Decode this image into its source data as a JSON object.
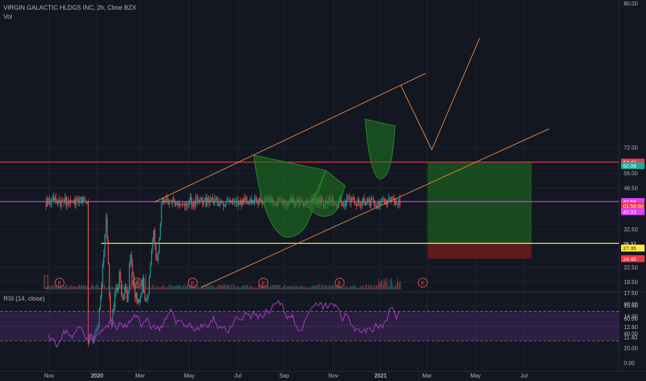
{
  "header": {
    "symbol_line": "VIRGIN GALACTIC HLDGS INC, 2h, Cboe BZX",
    "volume_label": "Vol"
  },
  "rsi_label": "RSI (14, close)",
  "chart_data": [
    {
      "type": "candlestick",
      "title": "VIRGIN GALACTIC HLDGS INC, 2h, Cboe BZX",
      "x_tick_labels": [
        "Nov",
        "2020",
        "Mar",
        "May",
        "Jul",
        "Sep",
        "Nov",
        "2021",
        "Mar",
        "May",
        "Jul"
      ],
      "y_tick_labels": [
        "80.00",
        "72.00",
        "56.00",
        "48.50",
        "32.50",
        "22.50",
        "19.50",
        "17.50",
        "15.50",
        "14.00",
        "12.60",
        "11.40"
      ],
      "y_scale": "log",
      "price_path": [
        [
          "2019-11-01",
          11.0
        ],
        [
          "2019-12-10",
          11.6
        ],
        [
          "2020-01-01",
          12.4
        ],
        [
          "2020-01-15",
          16.5
        ],
        [
          "2020-02-01",
          23.0
        ],
        [
          "2020-02-12",
          28.0
        ],
        [
          "2020-02-18",
          40.0
        ],
        [
          "2020-02-22",
          34.0
        ],
        [
          "2020-03-01",
          26.0
        ],
        [
          "2020-03-08",
          22.0
        ],
        [
          "2020-03-16",
          13.0
        ],
        [
          "2020-03-24",
          12.2
        ],
        [
          "2020-04-05",
          15.0
        ],
        [
          "2020-04-20",
          19.0
        ],
        [
          "2020-05-01",
          17.0
        ],
        [
          "2020-05-12",
          20.5
        ],
        [
          "2020-06-01",
          16.5
        ],
        [
          "2020-06-15",
          18.0
        ],
        [
          "2020-07-01",
          16.0
        ],
        [
          "2020-07-10",
          21.0
        ],
        [
          "2020-07-18",
          27.0
        ],
        [
          "2020-08-01",
          20.0
        ],
        [
          "2020-08-15",
          17.0
        ],
        [
          "2020-09-01",
          16.5
        ],
        [
          "2020-09-10",
          15.5
        ],
        [
          "2020-09-22",
          17.0
        ],
        [
          "2020-10-01",
          20.0
        ],
        [
          "2020-10-15",
          16.5
        ],
        [
          "2020-11-01",
          16.5
        ],
        [
          "2020-11-10",
          19.0
        ],
        [
          "2020-11-25",
          26.0
        ],
        [
          "2020-12-05",
          33.0
        ],
        [
          "2020-12-12",
          31.0
        ],
        [
          "2020-12-20",
          25.0
        ],
        [
          "2020-12-28",
          24.0
        ],
        [
          "2021-01-05",
          26.0
        ],
        [
          "2021-01-15",
          33.0
        ],
        [
          "2021-01-22",
          36.0
        ],
        [
          "2021-01-27",
          45.0
        ],
        [
          "2021-01-29",
          42.5
        ]
      ],
      "horizontal_levels": [
        {
          "value": 62.42,
          "color": "#f23645"
        },
        {
          "value": 42.54,
          "color": "#e040fb"
        },
        {
          "value": 28.37,
          "color": "#ffeb3b"
        }
      ],
      "price_tags": [
        {
          "text": "62.42",
          "bg": "#f23645",
          "fg": "#ffffff"
        },
        {
          "text": "62.09",
          "bg": "#26a69a",
          "fg": "#ffffff"
        },
        {
          "text": "42.54",
          "bg": "#e040fb",
          "fg": "#ffffff"
        },
        {
          "text": "01:58:50",
          "bg": "#f23645",
          "fg": "#ffffff"
        },
        {
          "text": "42.33",
          "bg": "#e040fb",
          "fg": "#ffffff"
        },
        {
          "text": "28.37",
          "bg": "#131722",
          "fg": "#ffffff"
        },
        {
          "text": "27.35",
          "bg": "#ffeb3b",
          "fg": "#131722"
        },
        {
          "text": "24.45",
          "bg": "#f23645",
          "fg": "#ffffff"
        }
      ],
      "earnings_markers": 7,
      "earnings_label": "E",
      "colors": {
        "up": "#26a69a",
        "down": "#ef5350",
        "channel": "#f0883e",
        "pattern_fill": "#1e7a1e"
      }
    },
    {
      "type": "line",
      "title": "RSI (14, close)",
      "y_tick_labels": [
        "80.00",
        "60.00",
        "40.00",
        "20.00",
        "0.00"
      ],
      "ylim": [
        0,
        100
      ],
      "band": [
        30,
        70
      ],
      "color": "#b23fd0"
    }
  ]
}
